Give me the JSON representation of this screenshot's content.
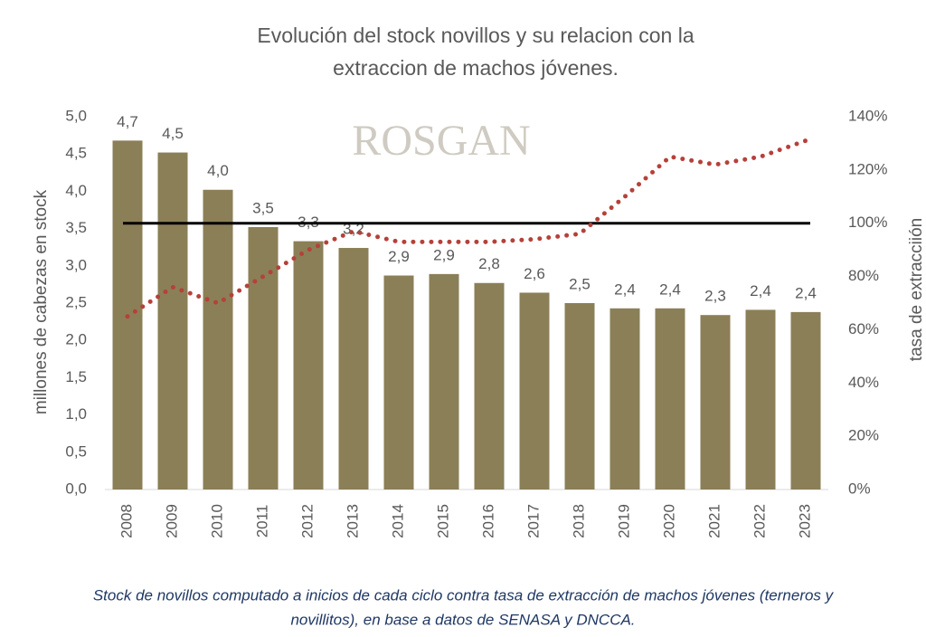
{
  "chart_data": {
    "type": "bar",
    "title_lines": [
      "Evolución del stock novillos y su relacion con la",
      "extraccion de machos jóvenes."
    ],
    "watermark": "ROSGAN",
    "y_label": "millones de cabezas en stock",
    "y2_label": "tasa de extracciión",
    "categories": [
      "2008",
      "2009",
      "2010",
      "2011",
      "2012",
      "2013",
      "2014",
      "2015",
      "2016",
      "2017",
      "2018",
      "2019",
      "2020",
      "2021",
      "2022",
      "2023"
    ],
    "series": [
      {
        "type": "bar",
        "color": "#8b7f57",
        "values": [
          4.68,
          4.52,
          4.02,
          3.52,
          3.33,
          3.24,
          2.87,
          2.89,
          2.77,
          2.64,
          2.5,
          2.43,
          2.43,
          2.34,
          2.41,
          2.38
        ],
        "value_labels": [
          "4,7",
          "4,5",
          "4,0",
          "3,5",
          "3,3",
          "3,2",
          "2,9",
          "2,9",
          "2,8",
          "2,6",
          "2,5",
          "2,4",
          "2,4",
          "2,3",
          "2,4",
          "2,4"
        ]
      },
      {
        "type": "line",
        "axis": "y2",
        "color": "#b5413a",
        "dotted": true,
        "values": [
          65,
          76,
          70,
          80,
          90,
          97,
          93,
          93,
          93,
          94,
          96,
          110,
          125,
          122,
          125,
          131
        ]
      }
    ],
    "reference_line": {
      "value": 100,
      "axis": "y2",
      "color": "#000000"
    },
    "ylim": [
      0,
      5
    ],
    "yticks": [
      {
        "value": 0,
        "label": "0,0"
      },
      {
        "value": 0.5,
        "label": "0,5"
      },
      {
        "value": 1,
        "label": "1,0"
      },
      {
        "value": 1.5,
        "label": "1,5"
      },
      {
        "value": 2,
        "label": "2,0"
      },
      {
        "value": 2.5,
        "label": "2,5"
      },
      {
        "value": 3,
        "label": "3,0"
      },
      {
        "value": 3.5,
        "label": "3,5"
      },
      {
        "value": 4,
        "label": "4,0"
      },
      {
        "value": 4.5,
        "label": "4,5"
      },
      {
        "value": 5,
        "label": "5,0"
      }
    ],
    "y2lim": [
      0,
      140
    ],
    "y2ticks": [
      {
        "value": 0,
        "label": "0%"
      },
      {
        "value": 20,
        "label": "20%"
      },
      {
        "value": 40,
        "label": "40%"
      },
      {
        "value": 60,
        "label": "60%"
      },
      {
        "value": 80,
        "label": "80%"
      },
      {
        "value": 100,
        "label": "100%"
      },
      {
        "value": 120,
        "label": "120%"
      },
      {
        "value": 140,
        "label": "140%"
      }
    ],
    "caption_lines": [
      "Stock de novillos computado a inicios de cada ciclo contra tasa de extracción de machos jóvenes (terneros y",
      "novillitos), en base a datos de SENASA y DNCCA."
    ]
  }
}
